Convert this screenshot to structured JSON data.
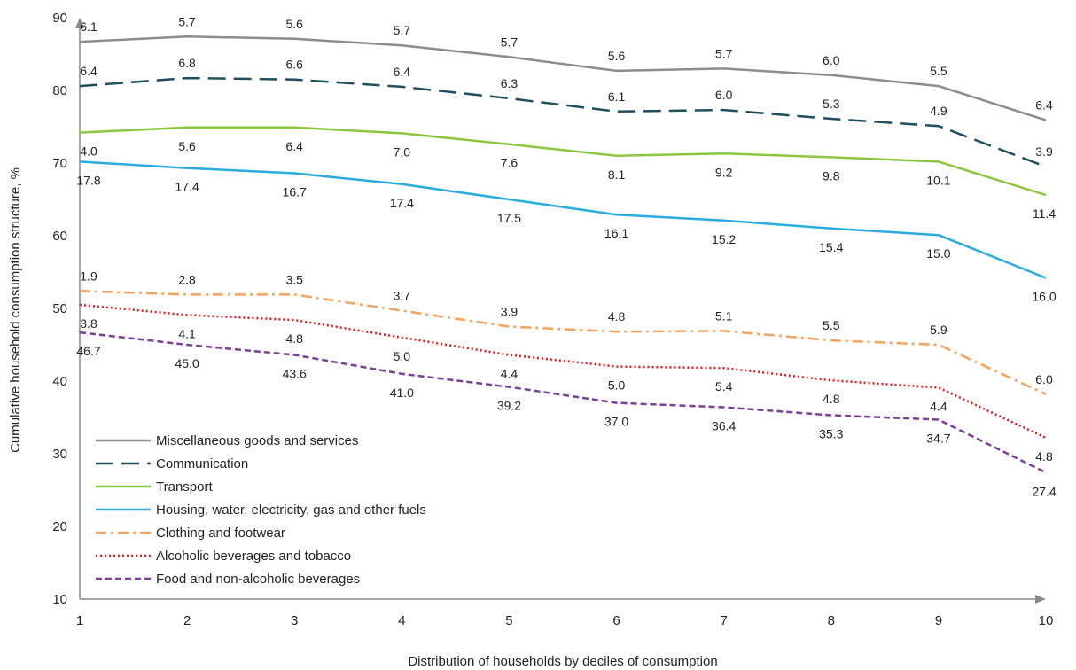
{
  "chart_data": {
    "type": "line",
    "xlabel": "Distribution of households by deciles of consumption",
    "ylabel": "Cumulative household consumption structure, %",
    "ylim": [
      10,
      90
    ],
    "yticks": [
      "10",
      "20",
      "30",
      "40",
      "50",
      "60",
      "70",
      "80",
      "90"
    ],
    "categories": [
      "1",
      "2",
      "3",
      "4",
      "5",
      "6",
      "7",
      "8",
      "9",
      "10"
    ],
    "grid": false,
    "legend_position": "bottom-left",
    "series": [
      {
        "name": "Food and non-alcoholic beverages",
        "color": "#7b3f98",
        "dash": "dashed",
        "values": [
          46.7,
          45.0,
          43.6,
          41.0,
          39.2,
          37.0,
          36.4,
          35.3,
          34.7,
          27.4
        ],
        "labels": [
          "46.7",
          "45.0",
          "43.6",
          "41.0",
          "39.2",
          "37.0",
          "36.4",
          "35.3",
          "34.7",
          "27.4"
        ],
        "label_pos": "below"
      },
      {
        "name": "Alcoholic beverages and tobacco",
        "color": "#e31a1c",
        "dash": "dotted",
        "values": [
          50.5,
          49.1,
          48.4,
          46.0,
          43.6,
          42.0,
          41.8,
          40.1,
          39.1,
          32.2
        ],
        "labels": [
          "3.8",
          "4.1",
          "4.8",
          "5.0",
          "4.4",
          "5.0",
          "5.4",
          "4.8",
          "4.4",
          "4.8"
        ],
        "label_pos": "below"
      },
      {
        "name": "Clothing and footwear",
        "color": "#f5a35c",
        "dash": "dashdot",
        "values": [
          52.4,
          51.9,
          51.9,
          49.7,
          47.5,
          46.8,
          46.9,
          45.6,
          45.0,
          38.2
        ],
        "labels": [
          "1.9",
          "2.8",
          "3.5",
          "3.7",
          "3.9",
          "4.8",
          "5.1",
          "5.5",
          "5.9",
          "6.0"
        ],
        "label_pos": "above"
      },
      {
        "name": "Housing, water, electricity, gas and other fuels",
        "color": "#29abe2",
        "dash": "solid",
        "values": [
          70.2,
          69.3,
          68.6,
          67.1,
          65.0,
          62.9,
          62.1,
          61.0,
          60.1,
          54.2
        ],
        "labels": [
          "17.8",
          "17.4",
          "16.7",
          "17.4",
          "17.5",
          "16.1",
          "15.2",
          "15.4",
          "15.0",
          "16.0"
        ],
        "label_pos": "below"
      },
      {
        "name": "Transport",
        "color": "#8cc63f",
        "dash": "solid",
        "values": [
          74.2,
          74.9,
          74.9,
          74.1,
          72.6,
          71.0,
          71.3,
          70.8,
          70.2,
          65.6
        ],
        "labels": [
          "4.0",
          "5.6",
          "6.4",
          "7.0",
          "7.6",
          "8.1",
          "9.2",
          "9.8",
          "10.1",
          "11.4"
        ],
        "label_pos": "below"
      },
      {
        "name": "Communication",
        "color": "#1f4e5f",
        "dash": "longdash",
        "values": [
          80.6,
          81.7,
          81.5,
          80.5,
          78.9,
          77.1,
          77.3,
          76.1,
          75.1,
          69.5
        ],
        "labels": [
          "6.4",
          "6.8",
          "6.6",
          "6.4",
          "6.3",
          "6.1",
          "6.0",
          "5.3",
          "4.9",
          "3.9"
        ],
        "label_pos": "above"
      },
      {
        "name": "Miscellaneous goods and services",
        "color": "#8c8c8c",
        "dash": "solid",
        "values": [
          86.7,
          87.4,
          87.1,
          86.2,
          84.6,
          82.7,
          83.0,
          82.1,
          80.6,
          75.9
        ],
        "labels": [
          "6.1",
          "5.7",
          "5.6",
          "5.7",
          "5.7",
          "5.6",
          "5.7",
          "6.0",
          "5.5",
          "6.4"
        ],
        "label_pos": "above"
      }
    ],
    "legend_order": [
      6,
      5,
      4,
      3,
      2,
      1,
      0
    ]
  }
}
